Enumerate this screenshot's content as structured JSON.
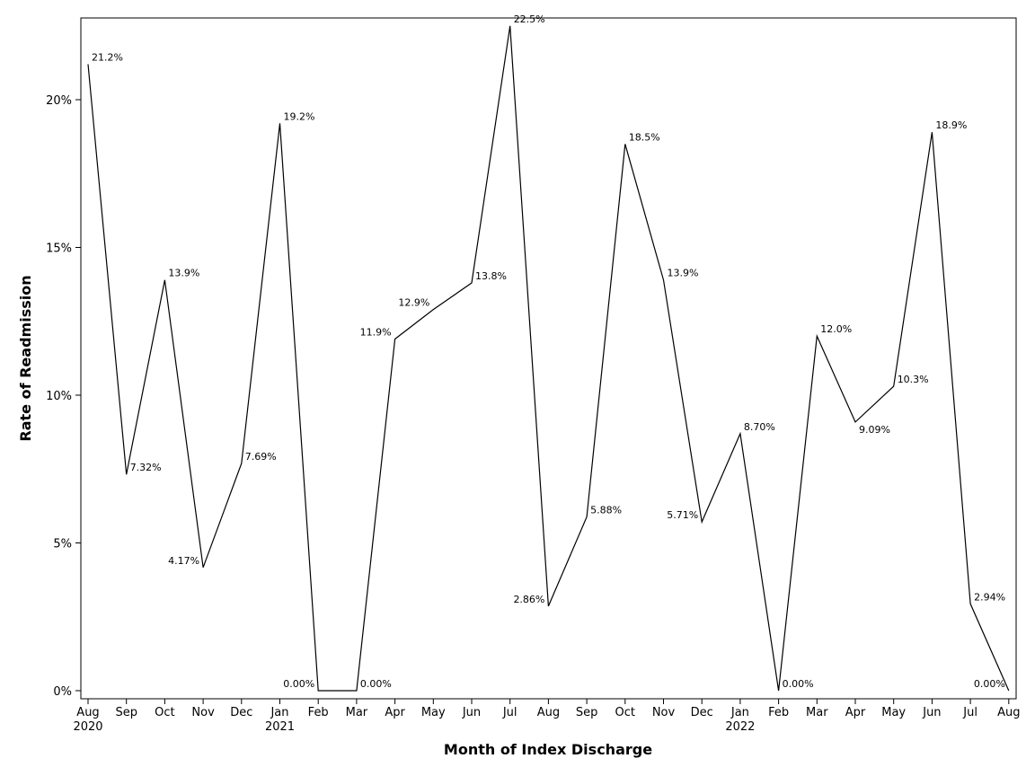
{
  "chart_data": {
    "type": "line",
    "xlabel": "Month of Index Discharge",
    "ylabel": "Rate of Readmission",
    "ylim": [
      0,
      22.8
    ],
    "yticks": [
      0,
      5,
      10,
      15,
      20
    ],
    "ytick_labels": [
      "0%",
      "5%",
      "10%",
      "15%",
      "20%"
    ],
    "grid": false,
    "legend": "none",
    "categories": [
      "Aug",
      "Sep",
      "Oct",
      "Nov",
      "Dec",
      "Jan",
      "Feb",
      "Mar",
      "Apr",
      "May",
      "Jun",
      "Jul",
      "Aug",
      "Sep",
      "Oct",
      "Nov",
      "Dec",
      "Jan",
      "Feb",
      "Mar",
      "Apr",
      "May",
      "Jun",
      "Jul",
      "Aug"
    ],
    "year_labels": [
      "2020",
      "",
      "",
      "",
      "",
      "2021",
      "",
      "",
      "",
      "",
      "",
      "",
      "",
      "",
      "",
      "",
      "",
      "2022",
      "",
      "",
      "",
      "",
      "",
      "",
      ""
    ],
    "values": [
      21.2,
      7.32,
      13.9,
      4.17,
      7.69,
      19.2,
      0.0,
      0.0,
      11.9,
      12.9,
      13.8,
      22.5,
      2.86,
      5.88,
      18.5,
      13.9,
      5.71,
      8.7,
      0.0,
      12.0,
      9.09,
      10.3,
      18.9,
      2.94,
      0.0
    ],
    "value_labels": [
      "21.2%",
      "7.32%",
      "13.9%",
      "4.17%",
      "7.69%",
      "19.2%",
      "0.00%",
      "0.00%",
      "11.9%",
      "12.9%",
      "13.8%",
      "22.5%",
      "2.86%",
      "5.88%",
      "18.5%",
      "13.9%",
      "5.71%",
      "8.70%",
      "0.00%",
      "12.0%",
      "9.09%",
      "10.3%",
      "18.9%",
      "2.94%",
      "0.00%"
    ],
    "label_positions": [
      "right",
      "right",
      "right",
      "left",
      "right",
      "right",
      "left",
      "right",
      "left",
      "left",
      "right",
      "right",
      "left",
      "right",
      "right",
      "right",
      "left",
      "right",
      "right",
      "right",
      "below-right",
      "right",
      "right",
      "right",
      "left"
    ],
    "line_color": "#000000"
  }
}
